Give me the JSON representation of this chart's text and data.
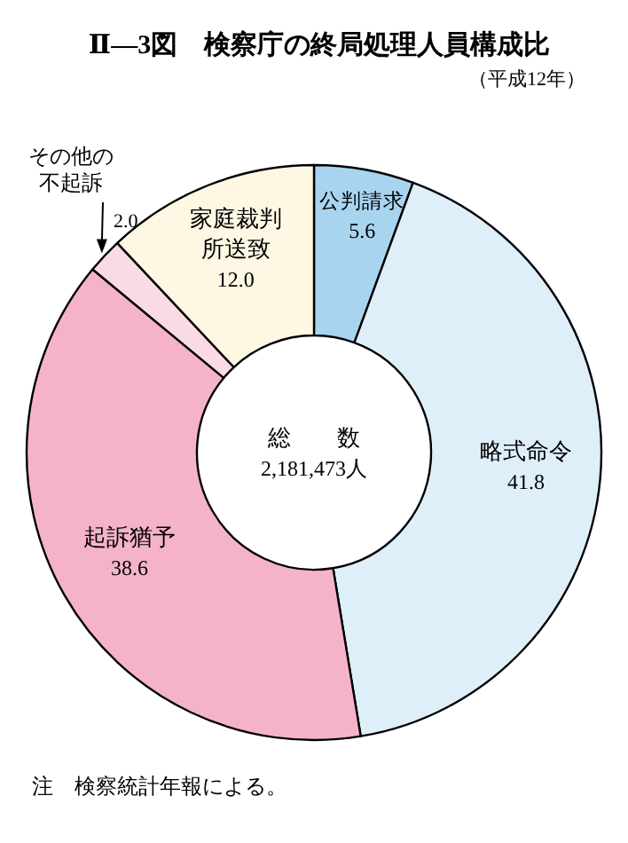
{
  "chart_data": {
    "type": "donut",
    "title": "Ⅱ—3図　検察庁の終局処理人員構成比",
    "subtitle": "（平成12年）",
    "categories": [
      "公判請求",
      "略式命令",
      "起訴猶予",
      "その他の不起訴",
      "家庭裁判所送致"
    ],
    "values": [
      5.6,
      41.8,
      38.6,
      2.0,
      12.0
    ],
    "value_labels": [
      "5.6",
      "41.8",
      "38.6",
      "2.0",
      "12.0"
    ],
    "colors": [
      "#a9d4f0",
      "#dfeffa",
      "#f5b3c9",
      "#fadbe5",
      "#fef7e3"
    ],
    "annotations": [
      "総　　数",
      "2,181,473人",
      "注　検察統計年報による。"
    ]
  }
}
